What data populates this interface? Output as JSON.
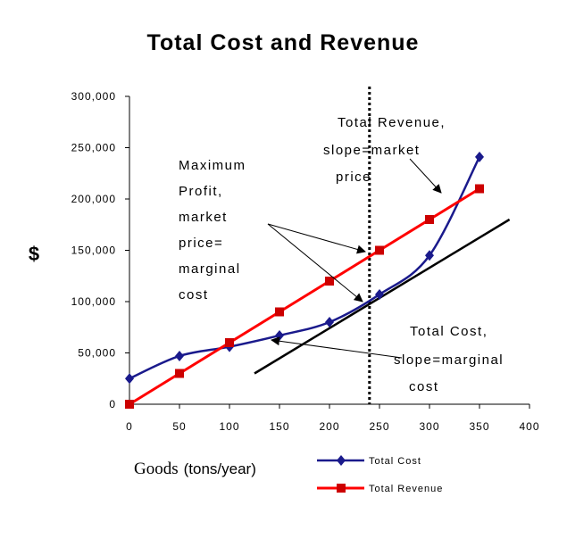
{
  "chart_data": {
    "type": "line",
    "title": "Total Cost and Revenue",
    "ylabel": "$",
    "xlabel_main": "Goods",
    "xlabel_unit": "(tons/year)",
    "xlim": [
      0,
      400
    ],
    "ylim": [
      0,
      300000
    ],
    "x_ticks": [
      "0",
      "50",
      "100",
      "150",
      "200",
      "250",
      "300",
      "350",
      "400"
    ],
    "y_ticks": [
      "0",
      "50,000",
      "100,000",
      "150,000",
      "200,000",
      "250,000",
      "300,000"
    ],
    "grid": false,
    "legend_position": "bottom-right",
    "series": [
      {
        "name": "Total Cost",
        "color": "#1a1a8c",
        "marker": "diamond",
        "points": [
          [
            0,
            25000
          ],
          [
            50,
            47000
          ],
          [
            100,
            56000
          ],
          [
            150,
            67000
          ],
          [
            200,
            80000
          ],
          [
            250,
            107000
          ],
          [
            300,
            145000
          ],
          [
            350,
            241000
          ]
        ]
      },
      {
        "name": "Total Revenue",
        "color": "#ff0000",
        "marker": "square",
        "points": [
          [
            0,
            0
          ],
          [
            50,
            30000
          ],
          [
            100,
            60000
          ],
          [
            150,
            90000
          ],
          [
            200,
            120000
          ],
          [
            250,
            150000
          ],
          [
            300,
            180000
          ],
          [
            350,
            210000
          ]
        ]
      }
    ],
    "reference_lines": {
      "vertical_x": 240,
      "tangent_line": [
        [
          125,
          30000
        ],
        [
          380,
          180000
        ]
      ]
    },
    "annotations": {
      "revenue": [
        "Total Revenue,",
        "slope=market",
        "price"
      ],
      "profit": [
        "Maximum",
        "Profit,",
        "market",
        "price=",
        "marginal",
        "cost"
      ],
      "cost": [
        "Total Cost,",
        "slope=marginal",
        "cost"
      ]
    }
  }
}
